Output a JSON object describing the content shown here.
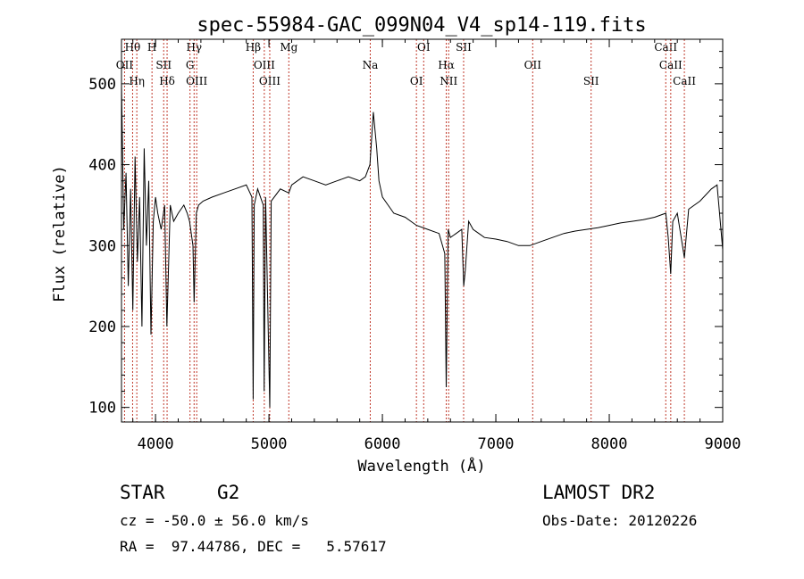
{
  "chart_data": {
    "type": "line",
    "title": "spec-55984-GAC_099N04_V4_sp14-119.fits",
    "xlabel": "Wavelength (Å)",
    "ylabel": "Flux (relative)",
    "xlim": [
      3700,
      9000
    ],
    "ylim": [
      82,
      555
    ],
    "x_ticks": [
      4000,
      5000,
      6000,
      7000,
      8000,
      9000
    ],
    "y_ticks": [
      100,
      200,
      300,
      400,
      500
    ],
    "line_color": "#000000",
    "marker_color": "#c0392b",
    "series": [
      {
        "x": [
          3700,
          3720,
          3740,
          3760,
          3780,
          3800,
          3820,
          3840,
          3860,
          3880,
          3900,
          3920,
          3940,
          3960,
          3980,
          4000,
          4020,
          4050,
          4080,
          4100,
          4130,
          4160,
          4200,
          4250,
          4280,
          4300,
          4330,
          4340,
          4360,
          4380,
          4420,
          4500,
          4600,
          4700,
          4800,
          4850,
          4861,
          4870,
          4900,
          4950,
          4958,
          4970,
          5007,
          5020,
          5100,
          5175,
          5200,
          5300,
          5400,
          5500,
          5600,
          5700,
          5800,
          5850,
          5890,
          5920,
          5950,
          5970,
          6000,
          6050,
          6100,
          6200,
          6300,
          6400,
          6500,
          6550,
          6563,
          6580,
          6600,
          6650,
          6700,
          6717,
          6731,
          6760,
          6800,
          6850,
          6900,
          7000,
          7100,
          7200,
          7300,
          7400,
          7500,
          7600,
          7700,
          7800,
          7900,
          8000,
          8100,
          8200,
          8300,
          8400,
          8498,
          8520,
          8542,
          8560,
          8600,
          8662,
          8700,
          8800,
          8900,
          8950,
          9000
        ],
        "y": [
          500,
          320,
          390,
          250,
          370,
          220,
          410,
          280,
          360,
          200,
          420,
          300,
          380,
          190,
          330,
          360,
          340,
          320,
          350,
          200,
          350,
          330,
          340,
          350,
          340,
          330,
          300,
          230,
          340,
          350,
          355,
          360,
          365,
          370,
          375,
          360,
          110,
          350,
          370,
          350,
          120,
          360,
          100,
          355,
          370,
          365,
          375,
          385,
          380,
          375,
          380,
          385,
          380,
          385,
          400,
          465,
          420,
          380,
          360,
          350,
          340,
          335,
          325,
          320,
          315,
          290,
          125,
          320,
          310,
          315,
          320,
          250,
          270,
          330,
          320,
          315,
          310,
          308,
          305,
          300,
          300,
          305,
          310,
          315,
          318,
          320,
          322,
          325,
          328,
          330,
          332,
          335,
          340,
          310,
          265,
          330,
          340,
          285,
          345,
          355,
          370,
          375,
          295
        ]
      }
    ],
    "line_markers": [
      {
        "label": "Hθ",
        "x": 3798
      },
      {
        "label": "OII",
        "x": 3727
      },
      {
        "label": "Hη",
        "x": 3835
      },
      {
        "label": "H",
        "x": 3969
      },
      {
        "label": "SII",
        "x": 4072
      },
      {
        "label": "Hδ",
        "x": 4102
      },
      {
        "label": "Hγ",
        "x": 4340
      },
      {
        "label": "G",
        "x": 4304
      },
      {
        "label": "OIII",
        "x": 4363
      },
      {
        "label": "Hβ",
        "x": 4861
      },
      {
        "label": "OIII",
        "x": 4959
      },
      {
        "label": "OIII",
        "x": 5007
      },
      {
        "label": "Mg",
        "x": 5175
      },
      {
        "label": "Na",
        "x": 5893
      },
      {
        "label": "OI",
        "x": 6300
      },
      {
        "label": "OI",
        "x": 6364
      },
      {
        "label": "Hα",
        "x": 6563
      },
      {
        "label": "NII",
        "x": 6584
      },
      {
        "label": "SII",
        "x": 6716
      },
      {
        "label": "OII",
        "x": 7325
      },
      {
        "label": "SII",
        "x": 7840
      },
      {
        "label": "CaII",
        "x": 8498
      },
      {
        "label": "CaII",
        "x": 8542
      },
      {
        "label": "CaII",
        "x": 8662
      }
    ]
  },
  "info": {
    "object_class": "STAR",
    "subclass": "G2",
    "survey": "LAMOST DR2",
    "redshift_line": "cz = -50.0 ± 56.0 km/s",
    "obs_date_line": "Obs-Date: 20120226",
    "coords_line": "RA =  97.44786, DEC =   5.57617"
  }
}
